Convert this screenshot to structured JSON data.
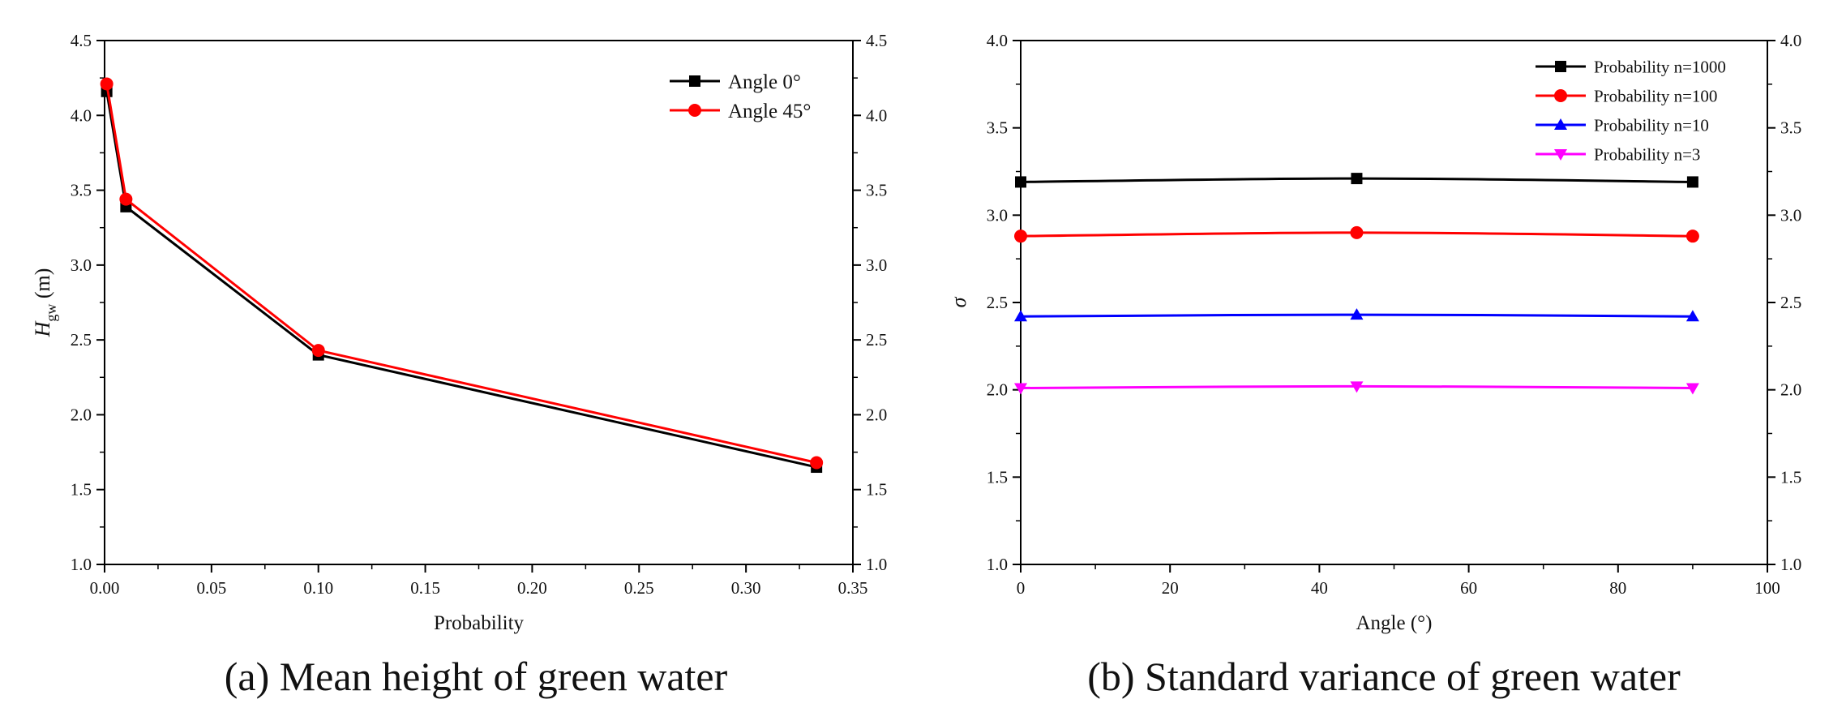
{
  "charts": [
    {
      "type": "line",
      "caption": "(a) Mean height of green water",
      "xlabel": "Probability",
      "ylabel_main": "H",
      "ylabel_sub": "gw",
      "ylabel_unit": " (m)",
      "xlim": [
        0,
        0.35
      ],
      "ylim": [
        1.0,
        4.5
      ],
      "xticks": [
        "0.00",
        "0.05",
        "0.10",
        "0.15",
        "0.20",
        "0.25",
        "0.30",
        "0.35"
      ],
      "yticks": [
        "1.0",
        "1.5",
        "2.0",
        "2.5",
        "3.0",
        "3.5",
        "4.0",
        "4.5"
      ],
      "legend_position": "top-right",
      "curve": "straight",
      "series": [
        {
          "name": "Angle 0°",
          "color": "#000000",
          "marker": "square",
          "x": [
            0.001,
            0.01,
            0.1,
            0.333
          ],
          "y": [
            4.16,
            3.39,
            2.4,
            1.65
          ]
        },
        {
          "name": "Angle 45°",
          "color": "#ff0000",
          "marker": "circle",
          "x": [
            0.001,
            0.01,
            0.1,
            0.333
          ],
          "y": [
            4.21,
            3.44,
            2.43,
            1.68
          ]
        }
      ]
    },
    {
      "type": "line",
      "caption": "(b) Standard variance of green water",
      "xlabel": "Angle (°)",
      "ylabel_main": "σ",
      "ylabel_sub": "",
      "ylabel_unit": "",
      "xlim": [
        0,
        100
      ],
      "ylim": [
        1.0,
        4.0
      ],
      "xticks": [
        "0",
        "20",
        "40",
        "60",
        "80",
        "100"
      ],
      "yticks": [
        "1.0",
        "1.5",
        "2.0",
        "2.5",
        "3.0",
        "3.5",
        "4.0"
      ],
      "legend_position": "top-right",
      "curve": "smooth",
      "series": [
        {
          "name": "Probability n=1000",
          "color": "#000000",
          "marker": "square",
          "x": [
            0,
            45,
            90
          ],
          "y": [
            3.19,
            3.21,
            3.19
          ]
        },
        {
          "name": "Probability n=100",
          "color": "#ff0000",
          "marker": "circle",
          "x": [
            0,
            45,
            90
          ],
          "y": [
            2.88,
            2.9,
            2.88
          ]
        },
        {
          "name": "Probability n=10",
          "color": "#0000ff",
          "marker": "triangle-up",
          "x": [
            0,
            45,
            90
          ],
          "y": [
            2.42,
            2.43,
            2.42
          ]
        },
        {
          "name": "Probability n=3",
          "color": "#ff00ff",
          "marker": "triangle-down",
          "x": [
            0,
            45,
            90
          ],
          "y": [
            2.01,
            2.02,
            2.01
          ]
        }
      ]
    }
  ]
}
